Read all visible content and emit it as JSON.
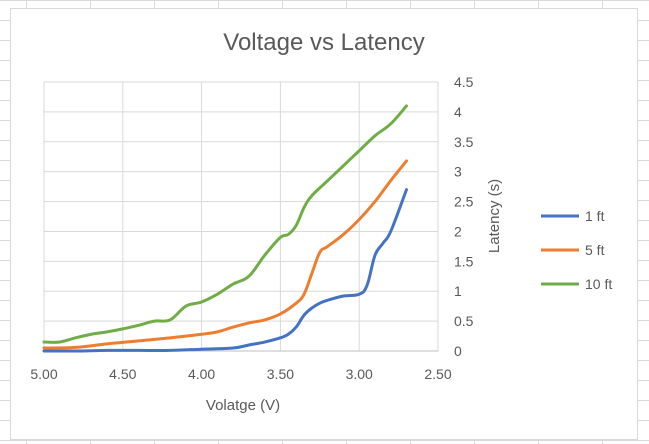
{
  "chart_data": {
    "type": "line",
    "title": "Voltage vs Latency",
    "xlabel": "Volatge (V)",
    "ylabel": "Latency (s)",
    "xlim": [
      5.0,
      2.5
    ],
    "ylim": [
      0,
      4.5
    ],
    "x_reversed": true,
    "y_axis_position": "right",
    "grid": true,
    "legend_position": "right",
    "x_ticks": [
      "5.00",
      "4.50",
      "4.00",
      "3.50",
      "3.00",
      "2.50"
    ],
    "y_ticks": [
      "0",
      "0.5",
      "1",
      "1.5",
      "2",
      "2.5",
      "3",
      "3.5",
      "4",
      "4.5"
    ],
    "series": [
      {
        "name": "1 ft",
        "color": "#4472C4",
        "x": [
          5.0,
          4.8,
          4.6,
          4.4,
          4.2,
          4.0,
          3.8,
          3.7,
          3.6,
          3.5,
          3.45,
          3.4,
          3.35,
          3.3,
          3.25,
          3.2,
          3.1,
          3.0,
          2.95,
          2.9,
          2.85,
          2.8,
          2.7
        ],
        "values": [
          0.0,
          0.0,
          0.01,
          0.01,
          0.01,
          0.03,
          0.05,
          0.1,
          0.15,
          0.22,
          0.28,
          0.4,
          0.6,
          0.72,
          0.8,
          0.85,
          0.92,
          0.95,
          1.1,
          1.6,
          1.8,
          2.0,
          2.7
        ]
      },
      {
        "name": "5 ft",
        "color": "#ED7D31",
        "x": [
          5.0,
          4.8,
          4.6,
          4.4,
          4.2,
          4.0,
          3.9,
          3.8,
          3.7,
          3.6,
          3.5,
          3.4,
          3.35,
          3.3,
          3.25,
          3.2,
          3.1,
          3.0,
          2.9,
          2.8,
          2.7
        ],
        "values": [
          0.05,
          0.06,
          0.12,
          0.17,
          0.22,
          0.28,
          0.32,
          0.4,
          0.47,
          0.52,
          0.62,
          0.8,
          0.95,
          1.3,
          1.65,
          1.75,
          1.95,
          2.2,
          2.5,
          2.85,
          3.18
        ]
      },
      {
        "name": "10 ft",
        "color": "#70AD47",
        "x": [
          5.0,
          4.9,
          4.8,
          4.7,
          4.6,
          4.5,
          4.4,
          4.3,
          4.2,
          4.1,
          4.0,
          3.9,
          3.8,
          3.7,
          3.6,
          3.5,
          3.45,
          3.4,
          3.35,
          3.3,
          3.2,
          3.1,
          3.0,
          2.9,
          2.8,
          2.7
        ],
        "values": [
          0.15,
          0.15,
          0.22,
          0.28,
          0.32,
          0.37,
          0.43,
          0.5,
          0.52,
          0.75,
          0.82,
          0.95,
          1.12,
          1.25,
          1.6,
          1.9,
          1.95,
          2.1,
          2.4,
          2.6,
          2.85,
          3.1,
          3.35,
          3.6,
          3.8,
          4.1
        ]
      }
    ]
  }
}
